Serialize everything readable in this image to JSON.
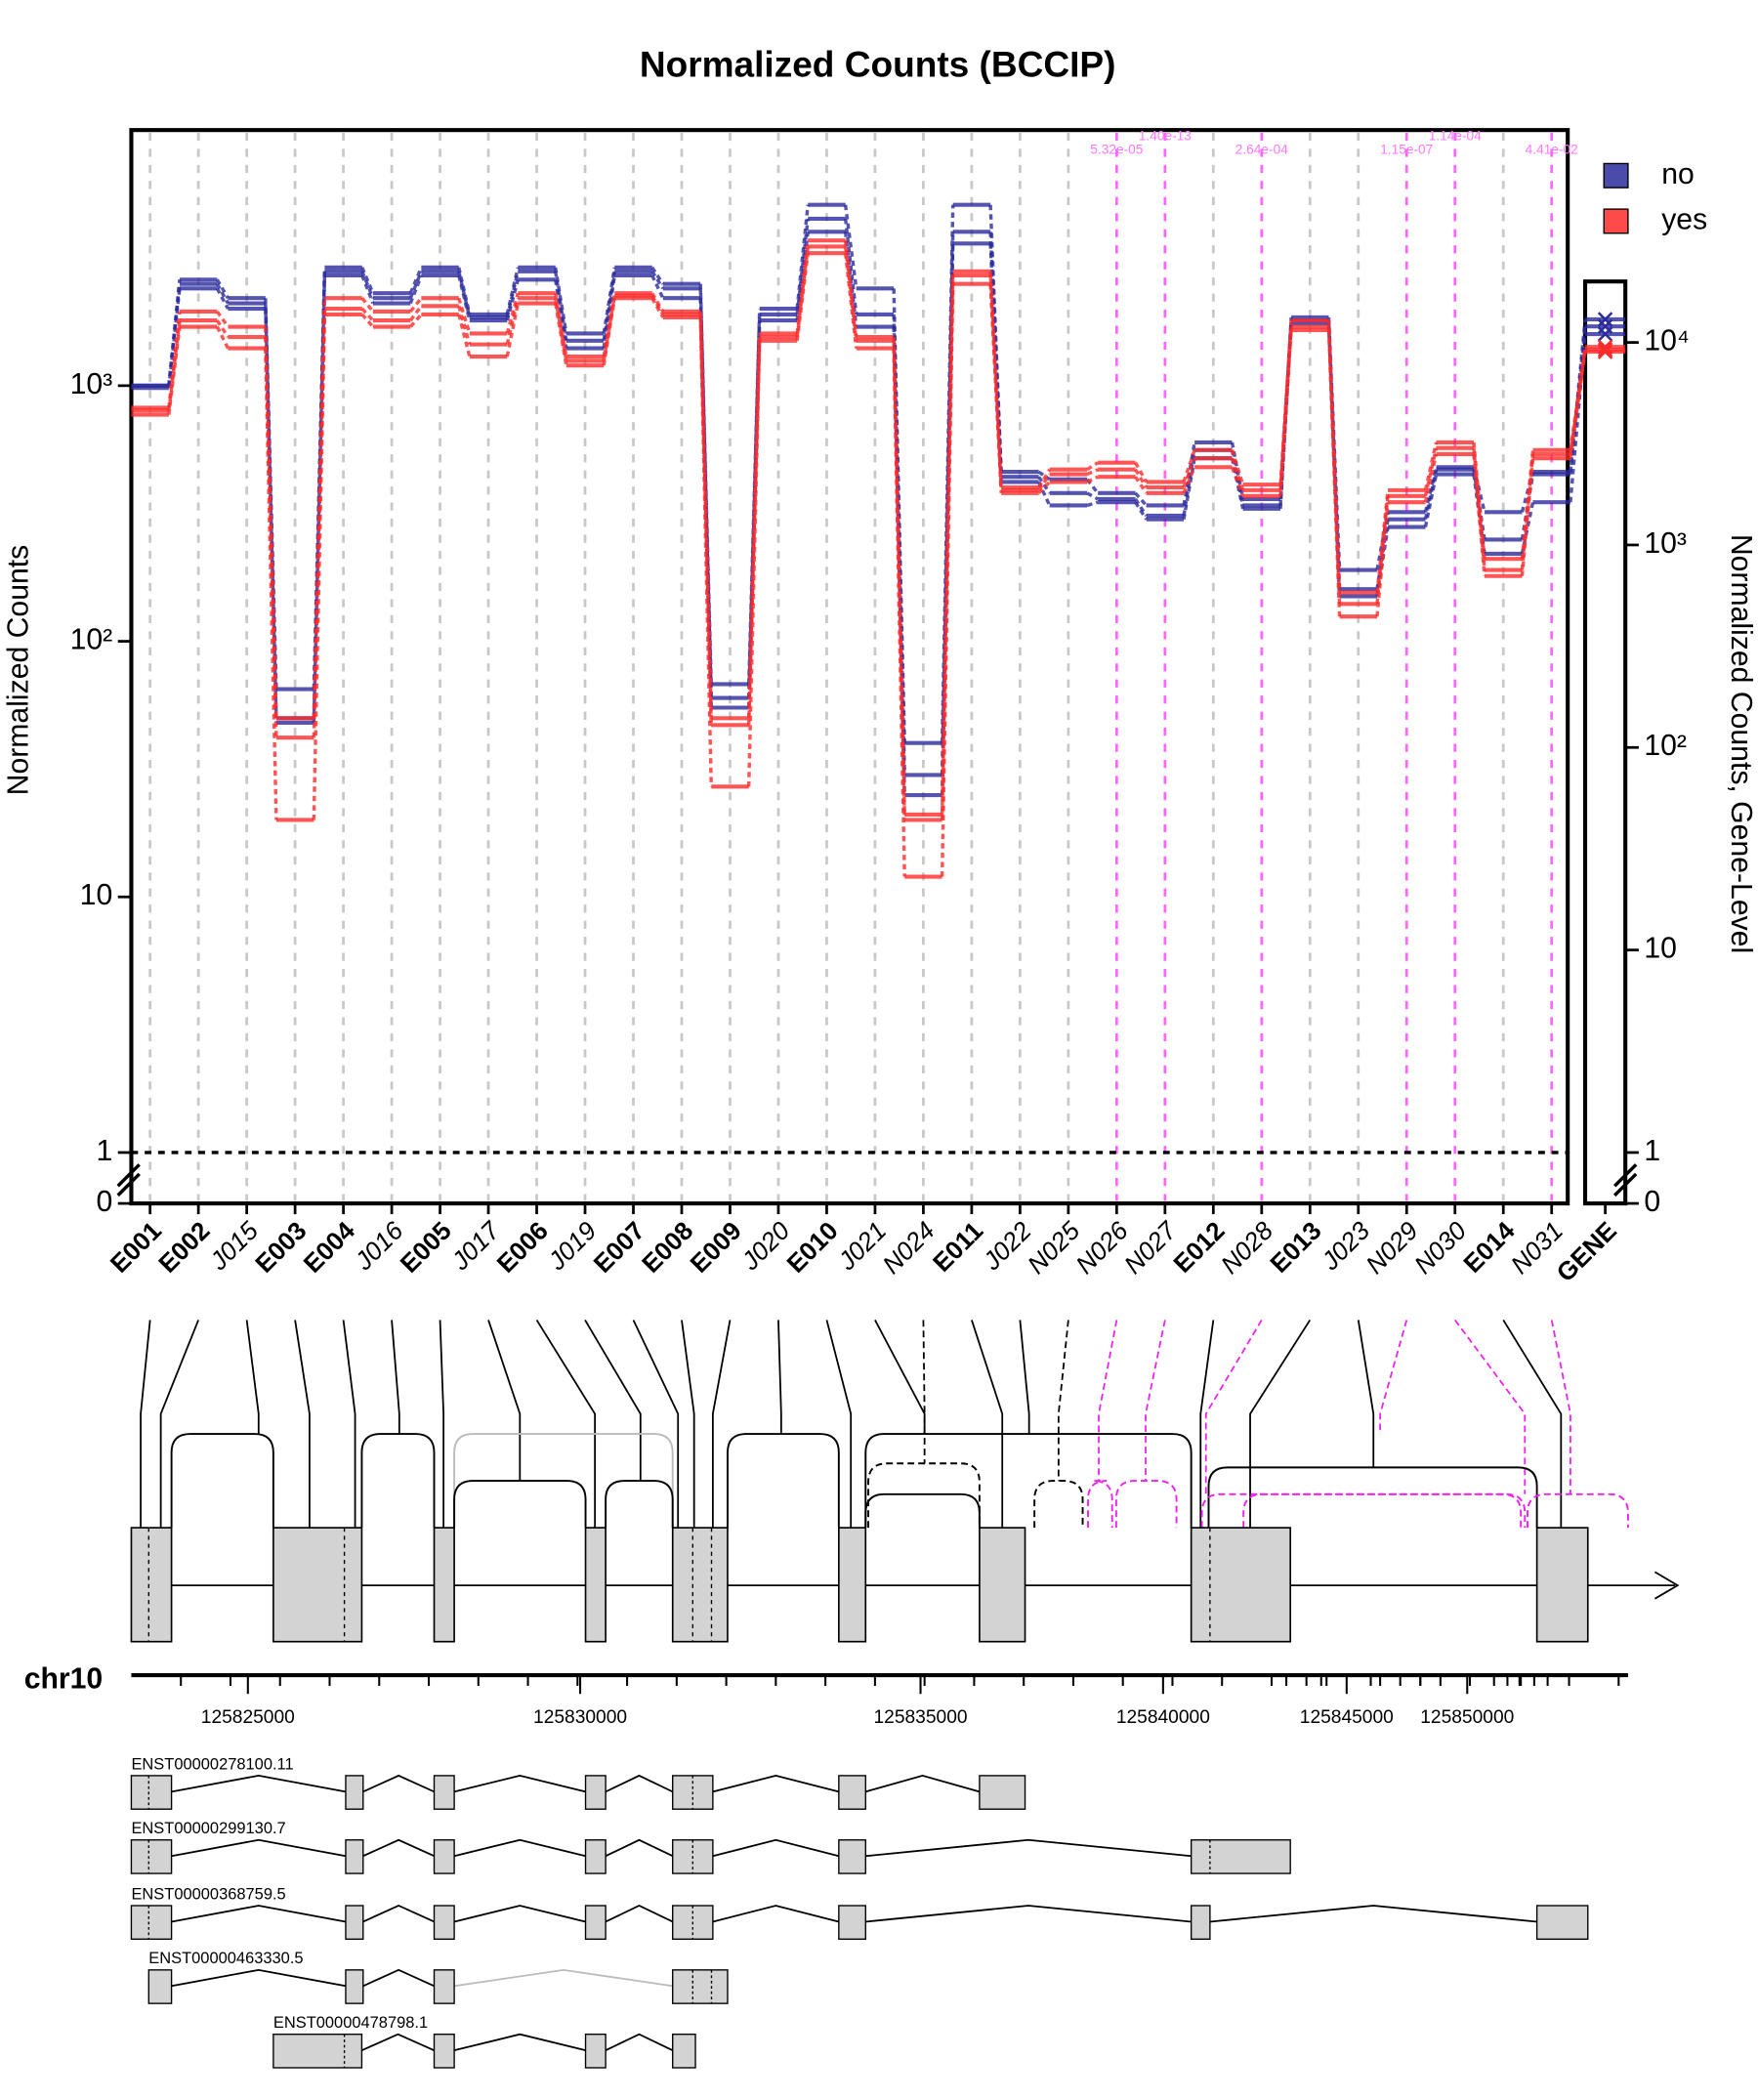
{
  "chart_data": {
    "type": "line",
    "title": "Normalized Counts (BCCIP)",
    "ylabel": "Normalized Counts",
    "y2label": "Normalized Counts, Gene-Level",
    "categories": [
      "E001",
      "E002",
      "J015",
      "E003",
      "E004",
      "J016",
      "E005",
      "J017",
      "E006",
      "J019",
      "E007",
      "E008",
      "E009",
      "J020",
      "E010",
      "J021",
      "N024",
      "E011",
      "J022",
      "N025",
      "N026",
      "N027",
      "E012",
      "N028",
      "E013",
      "J023",
      "N029",
      "N030",
      "E014",
      "N031"
    ],
    "pvalues": [
      null,
      null,
      null,
      null,
      null,
      null,
      null,
      null,
      null,
      null,
      null,
      null,
      null,
      null,
      null,
      null,
      null,
      null,
      null,
      null,
      "5.32e-05",
      "1.40e-13",
      null,
      "2.64e-04",
      null,
      null,
      "1.15e-07",
      "1.14e-04",
      null,
      "4.41e-02"
    ],
    "gene_category": "GENE",
    "log_scale": true,
    "grid": true,
    "ylim": [
      1,
      10000
    ],
    "yticks": [
      0,
      1,
      10,
      {
        "value": 100,
        "label": "10²"
      },
      {
        "value": 1000,
        "label": "10³"
      }
    ],
    "y2lim": [
      1,
      20000
    ],
    "y2ticks": [
      0,
      1,
      10,
      {
        "value": 100,
        "label": "10²"
      },
      {
        "value": 1000,
        "label": "10³"
      },
      {
        "value": 10000,
        "label": "10⁴"
      }
    ],
    "legend": "top-right",
    "groups": [
      {
        "name": "no",
        "color": "#2b2b9e",
        "samples": [
          [
            1000,
            2600,
            2200,
            65,
            2900,
            2300,
            2900,
            1900,
            2900,
            1600,
            2900,
            2500,
            68,
            2000,
            5100,
            2400,
            40,
            5100,
            460,
            430,
            380,
            340,
            600,
            360,
            1850,
            190,
            320,
            480,
            320,
            460
          ],
          [
            1000,
            2500,
            2100,
            50,
            2800,
            2200,
            2800,
            1850,
            2800,
            1500,
            2800,
            2400,
            60,
            1900,
            4500,
            1900,
            30,
            4000,
            440,
            380,
            360,
            310,
            560,
            340,
            1800,
            160,
            300,
            470,
            250,
            450
          ],
          [
            980,
            2400,
            2000,
            48,
            2700,
            2100,
            2700,
            1800,
            2600,
            1400,
            2700,
            2200,
            55,
            1800,
            4000,
            1700,
            25,
            3600,
            420,
            340,
            350,
            300,
            520,
            330,
            1750,
            150,
            280,
            450,
            220,
            350
          ]
        ],
        "gene": [
          13000,
          12000,
          11000
        ]
      },
      {
        "name": "yes",
        "color": "#ff2a2a",
        "samples": [
          [
            820,
            1950,
            1700,
            50,
            2200,
            1950,
            2200,
            1600,
            2300,
            1300,
            2300,
            1950,
            50,
            1600,
            3700,
            1550,
            21,
            2800,
            400,
            470,
            500,
            420,
            560,
            410,
            1800,
            155,
            390,
            600,
            210,
            560
          ],
          [
            800,
            1800,
            1550,
            42,
            2000,
            1800,
            2050,
            1450,
            2200,
            1250,
            2250,
            1900,
            47,
            1550,
            3500,
            1500,
            20,
            2700,
            390,
            450,
            470,
            400,
            520,
            390,
            1700,
            140,
            370,
            570,
            190,
            540
          ],
          [
            770,
            1700,
            1400,
            20,
            1900,
            1700,
            1900,
            1300,
            2100,
            1200,
            2200,
            1850,
            27,
            1500,
            3300,
            1400,
            12,
            2500,
            380,
            420,
            440,
            380,
            480,
            370,
            1650,
            125,
            350,
            540,
            180,
            520
          ]
        ],
        "gene": [
          9500,
          9200,
          9000
        ]
      }
    ]
  },
  "gene_model": {
    "chrom": "chr10",
    "ticks": [
      125825000,
      125830000,
      125835000,
      125840000,
      125845000,
      125850000
    ],
    "transcripts": [
      "ENST00000278100.11",
      "ENST00000299130.7",
      "ENST00000368759.5",
      "ENST00000463330.5",
      "ENST00000478798.1"
    ]
  }
}
